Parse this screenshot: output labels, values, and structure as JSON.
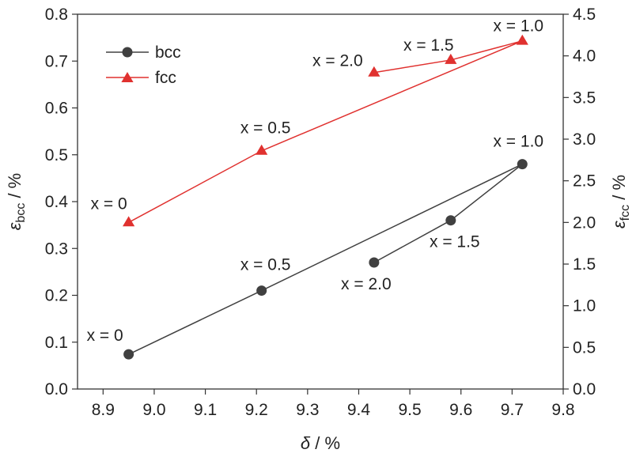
{
  "chart_data": {
    "type": "line",
    "xlabel": {
      "symbol": "δ",
      "unit": " / %"
    },
    "ylabel_left": {
      "symbol": "ε",
      "subscript": "bcc",
      "unit": " / %"
    },
    "ylabel_right": {
      "symbol": "ε",
      "subscript": "fcc",
      "unit": " / %"
    },
    "xlim": [
      8.85,
      9.8
    ],
    "ylim_left": [
      0,
      0.8
    ],
    "ylim_right": [
      0,
      4.5
    ],
    "x_ticks": [
      "8.9",
      "9.0",
      "9.1",
      "9.2",
      "9.3",
      "9.4",
      "9.5",
      "9.6",
      "9.7",
      "9.8"
    ],
    "y_ticks_left": [
      "0.0",
      "0.1",
      "0.2",
      "0.3",
      "0.4",
      "0.5",
      "0.6",
      "0.7",
      "0.8"
    ],
    "y_ticks_right": [
      "0.0",
      "0.5",
      "1.0",
      "1.5",
      "2.0",
      "2.5",
      "3.0",
      "3.5",
      "4.0",
      "4.5"
    ],
    "grid": false,
    "legend_position": "top-left",
    "series": [
      {
        "name": "bcc",
        "axis": "left",
        "color": "#404040",
        "marker": "circle",
        "points": [
          {
            "x": 8.95,
            "y": 0.074,
            "label": "x = 0"
          },
          {
            "x": 9.21,
            "y": 0.21,
            "label": "x = 0.5"
          },
          {
            "x": 9.72,
            "y": 0.48,
            "label": "x = 1.0"
          },
          {
            "x": 9.58,
            "y": 0.36,
            "label": "x = 1.5"
          },
          {
            "x": 9.43,
            "y": 0.27,
            "label": "x = 2.0"
          }
        ]
      },
      {
        "name": "fcc",
        "axis": "right",
        "color": "#e0312f",
        "marker": "triangle",
        "points": [
          {
            "x": 8.95,
            "y": 2.0,
            "label": "x = 0"
          },
          {
            "x": 9.21,
            "y": 2.86,
            "label": "x = 0.5"
          },
          {
            "x": 9.72,
            "y": 4.18,
            "label": "x = 1.0"
          },
          {
            "x": 9.58,
            "y": 3.95,
            "label": "x = 1.5"
          },
          {
            "x": 9.43,
            "y": 3.8,
            "label": "x = 2.0"
          }
        ]
      }
    ]
  }
}
